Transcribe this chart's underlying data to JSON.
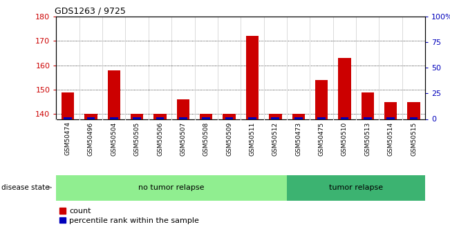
{
  "title": "GDS1263 / 9725",
  "samples": [
    "GSM50474",
    "GSM50496",
    "GSM50504",
    "GSM50505",
    "GSM50506",
    "GSM50507",
    "GSM50508",
    "GSM50509",
    "GSM50511",
    "GSM50512",
    "GSM50473",
    "GSM50475",
    "GSM50510",
    "GSM50513",
    "GSM50514",
    "GSM50515"
  ],
  "counts": [
    149,
    140,
    158,
    140,
    140,
    146,
    140,
    140,
    172,
    140,
    140,
    154,
    163,
    149,
    145,
    145
  ],
  "percentile_ranks": [
    0,
    0,
    0,
    0,
    0,
    0,
    0,
    0,
    0,
    0,
    0,
    0,
    2,
    0,
    0,
    0
  ],
  "ylim_left": [
    138,
    180
  ],
  "yticks_left": [
    140,
    150,
    160,
    170,
    180
  ],
  "ylim_right": [
    0,
    100
  ],
  "yticks_right": [
    0,
    25,
    50,
    75,
    100
  ],
  "yright_labels": [
    "0",
    "25",
    "50",
    "75",
    "100%"
  ],
  "groups": [
    {
      "label": "no tumor relapse",
      "start": 0,
      "end": 10,
      "color": "#90EE90"
    },
    {
      "label": "tumor relapse",
      "start": 10,
      "end": 16,
      "color": "#3CB371"
    }
  ],
  "bar_color": "#CC0000",
  "percentile_color": "#0000BB",
  "label_color_left": "#CC0000",
  "label_color_right": "#0000BB",
  "legend_count_label": "count",
  "legend_pct_label": "percentile rank within the sample",
  "disease_state_label": "disease state",
  "bar_width": 0.55,
  "percentile_bar_width": 0.35,
  "xlim": [
    -0.5,
    15.5
  ]
}
